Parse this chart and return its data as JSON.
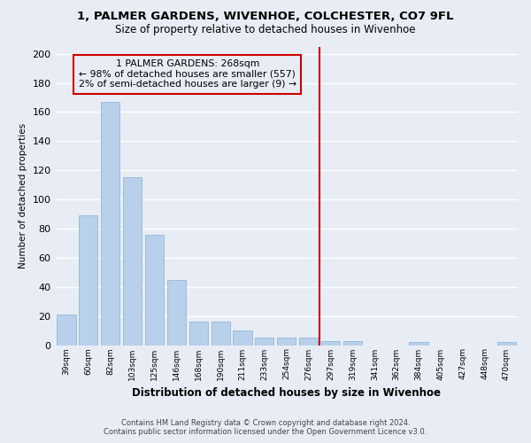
{
  "title": "1, PALMER GARDENS, WIVENHOE, COLCHESTER, CO7 9FL",
  "subtitle": "Size of property relative to detached houses in Wivenhoe",
  "xlabel": "Distribution of detached houses by size in Wivenhoe",
  "ylabel": "Number of detached properties",
  "footer_line1": "Contains HM Land Registry data © Crown copyright and database right 2024.",
  "footer_line2": "Contains public sector information licensed under the Open Government Licence v3.0.",
  "categories": [
    "39sqm",
    "60sqm",
    "82sqm",
    "103sqm",
    "125sqm",
    "146sqm",
    "168sqm",
    "190sqm",
    "211sqm",
    "233sqm",
    "254sqm",
    "276sqm",
    "297sqm",
    "319sqm",
    "341sqm",
    "362sqm",
    "384sqm",
    "405sqm",
    "427sqm",
    "448sqm",
    "470sqm"
  ],
  "values": [
    21,
    89,
    167,
    115,
    76,
    45,
    16,
    16,
    10,
    5,
    5,
    5,
    3,
    3,
    0,
    0,
    2,
    0,
    0,
    0,
    2
  ],
  "bar_color": "#b8d0ea",
  "bar_edge_color": "#8ab0d4",
  "background_color": "#e8edf5",
  "grid_color": "#ffffff",
  "annotation_line1": "1 PALMER GARDENS: 268sqm",
  "annotation_line2": "← 98% of detached houses are smaller (557)",
  "annotation_line3": "2% of semi-detached houses are larger (9) →",
  "vline_x_index": 11.5,
  "vline_color": "#cc0000",
  "annotation_box_color": "#cc0000",
  "ylim": [
    0,
    205
  ],
  "yticks": [
    0,
    20,
    40,
    60,
    80,
    100,
    120,
    140,
    160,
    180,
    200
  ]
}
